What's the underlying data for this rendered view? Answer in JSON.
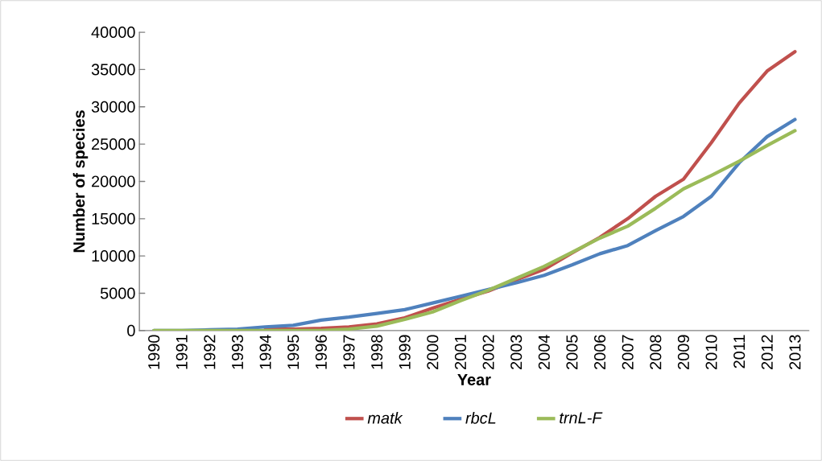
{
  "chart_data": {
    "type": "line",
    "xlabel": "Year",
    "ylabel": "Number of species",
    "categories": [
      "1990",
      "1991",
      "1992",
      "1993",
      "1994",
      "1995",
      "1996",
      "1997",
      "1998",
      "1999",
      "2000",
      "2001",
      "2002",
      "2003",
      "2004",
      "2005",
      "2006",
      "2007",
      "2008",
      "2009",
      "2010",
      "2011",
      "2012",
      "2013"
    ],
    "series": [
      {
        "name": "*matk*",
        "color": "#c0504d",
        "values": [
          null,
          null,
          null,
          null,
          200,
          200,
          300,
          500,
          900,
          1700,
          3000,
          4200,
          5300,
          6800,
          8200,
          10400,
          12500,
          15000,
          18000,
          20300,
          25200,
          30500,
          34800,
          37400
        ]
      },
      {
        "name": "*rbcL*",
        "color": "#4f81bd",
        "values": [
          0,
          0,
          100,
          200,
          500,
          700,
          1400,
          1800,
          2300,
          2800,
          3700,
          4600,
          5500,
          6400,
          7400,
          8800,
          10300,
          11400,
          13400,
          15300,
          18000,
          22500,
          26000,
          28300
        ]
      },
      {
        "name": "*trnL-F*",
        "color": "#9bbb59",
        "values": [
          0,
          0,
          0,
          0,
          0,
          0,
          0,
          200,
          600,
          1500,
          2500,
          4000,
          5400,
          7000,
          8600,
          10500,
          12400,
          14000,
          16400,
          19000,
          20800,
          22700,
          24800,
          26800
        ]
      }
    ],
    "ylim": [
      0,
      40000
    ],
    "yticks": [
      0,
      5000,
      10000,
      15000,
      20000,
      25000,
      30000,
      35000,
      40000
    ],
    "grid": false,
    "legend": "bottom",
    "marker": "none",
    "line_style": "solid"
  }
}
